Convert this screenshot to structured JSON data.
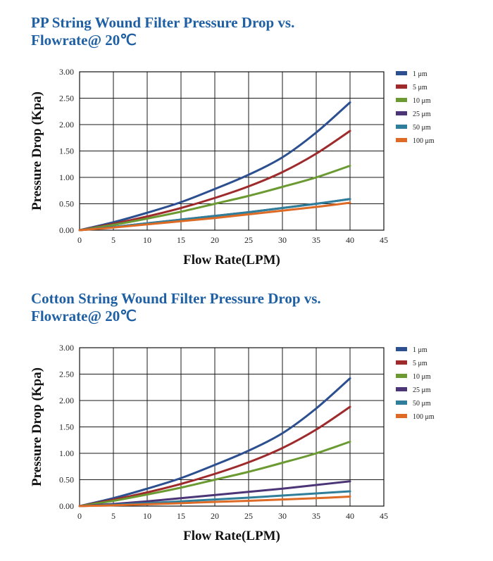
{
  "chart_data": [
    {
      "type": "line",
      "title_line1": "PP String Wound Filter Pressure Drop vs.",
      "title_line2": "Flowrate@ 20℃",
      "xlabel": "Flow Rate(LPM)",
      "ylabel": "Pressure Drop (Kpa)",
      "xlim": [
        0,
        45
      ],
      "ylim": [
        0,
        3
      ],
      "xticks": [
        "0",
        "5",
        "10",
        "15",
        "20",
        "25",
        "30",
        "35",
        "40",
        "45"
      ],
      "yticks": [
        "0.00",
        "0.50",
        "1.00",
        "1.50",
        "2.00",
        "2.50",
        "3.00"
      ],
      "grid": true,
      "legend_position": "right",
      "x": [
        0,
        5,
        10,
        15,
        20,
        25,
        30,
        35,
        40
      ],
      "series": [
        {
          "name": "1 μm",
          "color": "#2b4f8f",
          "values": [
            0,
            0.15,
            0.33,
            0.53,
            0.78,
            1.05,
            1.38,
            1.85,
            2.42
          ]
        },
        {
          "name": "5 μm",
          "color": "#9e2a2b",
          "values": [
            0,
            0.12,
            0.26,
            0.42,
            0.61,
            0.83,
            1.1,
            1.45,
            1.88
          ]
        },
        {
          "name": "10 μm",
          "color": "#6a9a31",
          "values": [
            0,
            0.1,
            0.22,
            0.35,
            0.5,
            0.65,
            0.82,
            1.0,
            1.22
          ]
        },
        {
          "name": "25 μm",
          "color": "#4b3577",
          "values": [
            0,
            0.06,
            0.13,
            0.2,
            0.27,
            0.34,
            0.42,
            0.5,
            0.59
          ]
        },
        {
          "name": "50 μm",
          "color": "#2f7f9a",
          "values": [
            0,
            0.06,
            0.13,
            0.2,
            0.27,
            0.34,
            0.42,
            0.5,
            0.59
          ]
        },
        {
          "name": "100 μm",
          "color": "#dd6a25",
          "values": [
            0,
            0.05,
            0.11,
            0.17,
            0.23,
            0.3,
            0.37,
            0.44,
            0.52
          ]
        }
      ]
    },
    {
      "type": "line",
      "title_line1": "Cotton String Wound Filter Pressure Drop vs.",
      "title_line2": "Flowrate@ 20℃",
      "xlabel": "Flow Rate(LPM)",
      "ylabel": "Pressure Drop (Kpa)",
      "xlim": [
        0,
        45
      ],
      "ylim": [
        0,
        3
      ],
      "xticks": [
        "0",
        "5",
        "10",
        "15",
        "20",
        "25",
        "30",
        "35",
        "40",
        "45"
      ],
      "yticks": [
        "0.00",
        "0.50",
        "1.00",
        "1.50",
        "2.00",
        "2.50",
        "3.00"
      ],
      "grid": true,
      "legend_position": "right",
      "x": [
        0,
        5,
        10,
        15,
        20,
        25,
        30,
        35,
        40
      ],
      "series": [
        {
          "name": "1 μm",
          "color": "#2b4f8f",
          "values": [
            0,
            0.15,
            0.33,
            0.53,
            0.78,
            1.05,
            1.38,
            1.85,
            2.42
          ]
        },
        {
          "name": "5 μm",
          "color": "#9e2a2b",
          "values": [
            0,
            0.12,
            0.26,
            0.42,
            0.61,
            0.83,
            1.1,
            1.45,
            1.88
          ]
        },
        {
          "name": "10 μm",
          "color": "#6a9a31",
          "values": [
            0,
            0.1,
            0.22,
            0.35,
            0.5,
            0.65,
            0.82,
            1.0,
            1.22
          ]
        },
        {
          "name": "25 μm",
          "color": "#4b3577",
          "values": [
            0,
            0.04,
            0.09,
            0.15,
            0.21,
            0.27,
            0.33,
            0.4,
            0.47
          ]
        },
        {
          "name": "50 μm",
          "color": "#2f7f9a",
          "values": [
            0,
            0.025,
            0.055,
            0.09,
            0.125,
            0.16,
            0.2,
            0.24,
            0.28
          ]
        },
        {
          "name": "100 μm",
          "color": "#dd6a25",
          "values": [
            0,
            0.015,
            0.035,
            0.055,
            0.08,
            0.1,
            0.125,
            0.15,
            0.18
          ]
        }
      ]
    }
  ]
}
